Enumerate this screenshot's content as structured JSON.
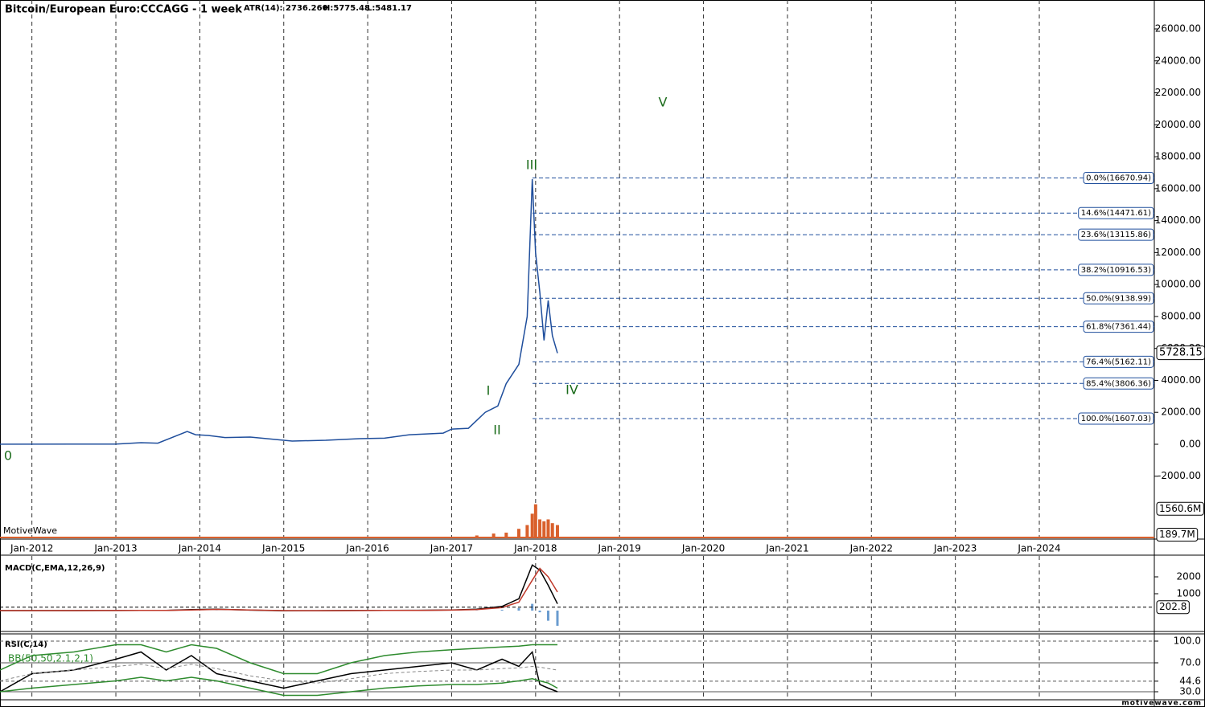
{
  "chart_data": [
    {
      "type": "line",
      "title": "Bitcoin/European Euro:CCCAGG - 1 week",
      "stats": [
        "ATR(14): 2736.260",
        "H:5775.48",
        "L:5481.17"
      ],
      "watermark": "MotiveWave",
      "footer": "motivewave.com",
      "xlim": [
        2011.62,
        2025.37
      ],
      "xticks": [
        {
          "value": 2012,
          "label": "Jan-2012"
        },
        {
          "value": 2013,
          "label": "Jan-2013"
        },
        {
          "value": 2014,
          "label": "Jan-2014"
        },
        {
          "value": 2015,
          "label": "Jan-2015"
        },
        {
          "value": 2016,
          "label": "Jan-2016"
        },
        {
          "value": 2017,
          "label": "Jan-2017"
        },
        {
          "value": 2018,
          "label": "Jan-2018"
        },
        {
          "value": 2019,
          "label": "Jan-2019"
        },
        {
          "value": 2020,
          "label": "Jan-2020"
        },
        {
          "value": 2021,
          "label": "Jan-2021"
        },
        {
          "value": 2022,
          "label": "Jan-2022"
        },
        {
          "value": 2023,
          "label": "Jan-2023"
        },
        {
          "value": 2024,
          "label": "Jan-2024"
        }
      ],
      "ylim": [
        -5885,
        27810
      ],
      "yticks": [
        {
          "value": -2000,
          "label": "-2000.00"
        },
        {
          "value": 0,
          "label": "0.00"
        },
        {
          "value": 2000,
          "label": "2000.00"
        },
        {
          "value": 4000,
          "label": "4000.00"
        },
        {
          "value": 6000,
          "label": "6000.00"
        },
        {
          "value": 8000,
          "label": "8000.00"
        },
        {
          "value": 10000,
          "label": "10000.00"
        },
        {
          "value": 12000,
          "label": "12000.00"
        },
        {
          "value": 14000,
          "label": "14000.00"
        },
        {
          "value": 16000,
          "label": "16000.00"
        },
        {
          "value": 18000,
          "label": "18000.00"
        },
        {
          "value": 20000,
          "label": "20000.00"
        },
        {
          "value": 22000,
          "label": "22000.00"
        },
        {
          "value": 24000,
          "label": "24000.00"
        },
        {
          "value": 26000,
          "label": "26000.00"
        }
      ],
      "grid": true,
      "x": [
        2011.62,
        2012.5,
        2013.0,
        2013.3,
        2013.5,
        2013.85,
        2013.95,
        2014.1,
        2014.3,
        2014.6,
        2014.9,
        2015.1,
        2015.5,
        2015.9,
        2016.2,
        2016.5,
        2016.9,
        2017.0,
        2017.2,
        2017.4,
        2017.55,
        2017.65,
        2017.8,
        2017.9,
        2017.96,
        2018.0,
        2018.05,
        2018.1,
        2018.15,
        2018.2,
        2018.26
      ],
      "series": [
        {
          "color": "#1f4e9c",
          "values": [
            5,
            7,
            10,
            100,
            70,
            800,
            600,
            550,
            420,
            450,
            300,
            200,
            250,
            350,
            380,
            600,
            700,
            950,
            1000,
            2000,
            2400,
            3800,
            5000,
            8000,
            16600,
            12000,
            9500,
            6500,
            9000,
            6800,
            5700
          ]
        }
      ],
      "last_price": {
        "value": 5728.15,
        "label": "5728.15"
      },
      "fib_levels": [
        {
          "value": 16670.94,
          "label": "0.0%(16670.94)"
        },
        {
          "value": 14471.61,
          "label": "14.6%(14471.61)"
        },
        {
          "value": 13115.86,
          "label": "23.6%(13115.86)"
        },
        {
          "value": 10916.53,
          "label": "38.2%(10916.53)"
        },
        {
          "value": 9138.99,
          "label": "50.0%(9138.99)"
        },
        {
          "value": 7361.44,
          "label": "61.8%(7361.44)"
        },
        {
          "value": 5162.11,
          "label": "76.4%(5162.11)"
        },
        {
          "value": 3806.36,
          "label": "85.4%(3806.36)"
        },
        {
          "value": 1607.03,
          "label": "100.0%(1607.03)"
        }
      ],
      "fib_color": "#1f4e9c",
      "wave_labels": [
        "0",
        "I",
        "II",
        "III",
        "IV",
        "V"
      ],
      "wave_color": "#1a6b1a",
      "volume": {
        "color": "#d9602c",
        "x": [
          2013.9,
          2016.5,
          2017.0,
          2017.3,
          2017.5,
          2017.65,
          2017.8,
          2017.9,
          2017.96,
          2018.0,
          2018.05,
          2018.1,
          2018.15,
          2018.2,
          2018.26
        ],
        "values": [
          20,
          30,
          60,
          150,
          250,
          300,
          500,
          700,
          1300,
          1800,
          1000,
          900,
          1000,
          800,
          700
        ],
        "ylim": [
          0,
          3400
        ],
        "yticks": [
          {
            "value": 1560.6,
            "label": "1560.6M"
          },
          {
            "value": 189.7,
            "label": "189.7M"
          }
        ]
      }
    },
    {
      "type": "line",
      "title": "MACD(C,EMA,12,26,9)",
      "ylim": [
        -1190,
        3238
      ],
      "yticks": [
        2000,
        1000
      ],
      "last_value": {
        "value": 202.8,
        "label": "202.8"
      },
      "x": [
        2011.62,
        2012,
        2012.5,
        2013,
        2013.3,
        2013.6,
        2013.9,
        2014.2,
        2014.6,
        2015,
        2015.4,
        2015.8,
        2016.2,
        2016.6,
        2017,
        2017.3,
        2017.6,
        2017.8,
        2017.96,
        2018.05,
        2018.15,
        2018.26
      ],
      "series": [
        {
          "color": "#000000",
          "values": [
            0,
            0,
            2,
            5,
            10,
            8,
            60,
            80,
            30,
            -10,
            -5,
            5,
            10,
            20,
            40,
            80,
            250,
            700,
            2700,
            2400,
            1500,
            400
          ]
        },
        {
          "color": "#c0392b",
          "values": [
            0,
            0,
            1,
            3,
            8,
            8,
            40,
            70,
            40,
            0,
            -5,
            2,
            8,
            15,
            30,
            60,
            180,
            500,
            1800,
            2500,
            2000,
            1100
          ]
        }
      ],
      "histogram": {
        "color": "#6a9ccf",
        "values": [
          0,
          0,
          0,
          0,
          0,
          0,
          10,
          5,
          -5,
          0,
          0,
          0,
          0,
          0,
          5,
          10,
          50,
          150,
          400,
          -100,
          -600,
          -900
        ]
      }
    },
    {
      "type": "line",
      "title": "RSI(C,14)",
      "subtitle": "BB(50,50,2.1,2,1)",
      "ylim": [
        20,
        108.9
      ],
      "yticks": [
        {
          "value": 100,
          "label": "100.0"
        },
        {
          "value": 70,
          "label": "70.0"
        },
        {
          "value": 44.6,
          "label": "44.6"
        },
        {
          "value": 30,
          "label": "30.0"
        }
      ],
      "x": [
        2011.62,
        2012,
        2012.5,
        2013,
        2013.3,
        2013.6,
        2013.9,
        2014.2,
        2014.6,
        2015,
        2015.4,
        2015.8,
        2016.2,
        2016.6,
        2017,
        2017.3,
        2017.6,
        2017.8,
        2017.96,
        2018.05,
        2018.15,
        2018.26
      ],
      "series": [
        {
          "color": "#000000",
          "values": [
            30,
            55,
            60,
            75,
            85,
            60,
            80,
            55,
            45,
            35,
            45,
            55,
            60,
            65,
            70,
            60,
            75,
            65,
            85,
            40,
            35,
            30
          ]
        },
        {
          "color": "#2e8b2e",
          "values": [
            60,
            80,
            85,
            95,
            95,
            85,
            95,
            90,
            70,
            55,
            55,
            70,
            80,
            85,
            88,
            90,
            92,
            93,
            95,
            95,
            95,
            95
          ]
        },
        {
          "color": "#2e8b2e",
          "values": [
            30,
            35,
            40,
            45,
            50,
            45,
            50,
            45,
            35,
            25,
            25,
            30,
            35,
            38,
            40,
            40,
            42,
            45,
            48,
            45,
            42,
            35
          ]
        },
        {
          "color": "#888888",
          "values": [
            45,
            55,
            60,
            65,
            68,
            62,
            68,
            62,
            52,
            45,
            42,
            48,
            55,
            58,
            60,
            60,
            62,
            63,
            65,
            64,
            62,
            60
          ]
        }
      ]
    }
  ]
}
